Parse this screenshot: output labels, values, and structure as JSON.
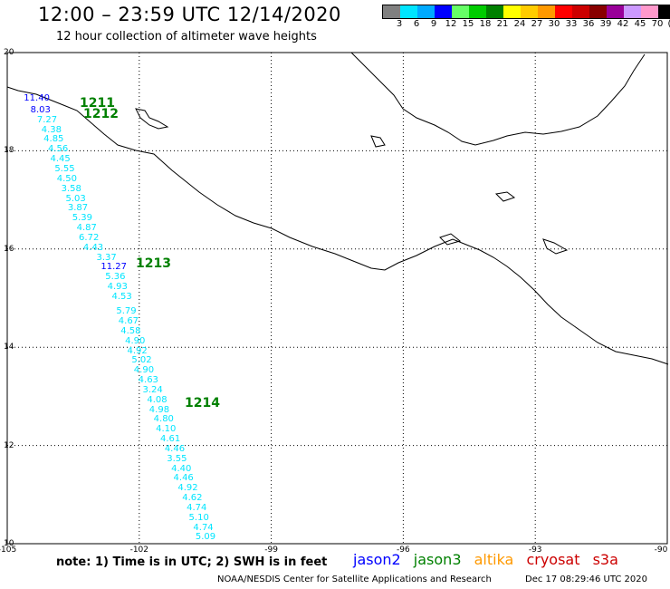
{
  "header": {
    "title": "12:00 – 23:59 UTC 12/14/2020",
    "subtitle": "12 hour collection of altimeter wave heights"
  },
  "colorbar": {
    "colors": [
      "#808080",
      "#00e5ff",
      "#00aaff",
      "#0000ff",
      "#66ff66",
      "#00cc00",
      "#008000",
      "#ffff00",
      "#ffcc00",
      "#ff9900",
      "#ff0000",
      "#cc0000",
      "#880000",
      "#990099",
      "#cc99ff",
      "#ff99cc",
      "#000000"
    ],
    "labels": [
      "3",
      "6",
      "9",
      "12",
      "15",
      "18",
      "21",
      "24",
      "27",
      "30",
      "33",
      "36",
      "39",
      "42",
      "45",
      "70",
      "(ft)"
    ]
  },
  "axes": {
    "y_labels": [
      "20",
      "18",
      "16",
      "14",
      "12",
      "10"
    ],
    "x_labels": [
      "-105",
      "-102",
      "-99",
      "-96",
      "-93",
      "-90"
    ]
  },
  "passes": [
    "1211",
    "1212",
    "1213",
    "1214"
  ],
  "chart_data": {
    "type": "scatter",
    "xlim": [
      -105,
      -90
    ],
    "ylim": [
      10,
      20
    ],
    "grid": true,
    "points": [
      {
        "label": "11.40",
        "lon": -104.5,
        "lat": 19.05,
        "color": "#0000ff"
      },
      {
        "label": "8.03",
        "lon": -104.35,
        "lat": 18.82,
        "color": "#0000ff"
      },
      {
        "label": "7.27",
        "lon": -104.2,
        "lat": 18.62,
        "color": "#00e5ff"
      },
      {
        "label": "4.38",
        "lon": -104.1,
        "lat": 18.42,
        "color": "#00e5ff"
      },
      {
        "label": "4.85",
        "lon": -104.05,
        "lat": 18.22,
        "color": "#00e5ff"
      },
      {
        "label": "4.56",
        "lon": -103.95,
        "lat": 18.02,
        "color": "#00e5ff"
      },
      {
        "label": "4.45",
        "lon": -103.9,
        "lat": 17.82,
        "color": "#00e5ff"
      },
      {
        "label": "5.55",
        "lon": -103.8,
        "lat": 17.62,
        "color": "#00e5ff"
      },
      {
        "label": "4.50",
        "lon": -103.75,
        "lat": 17.42,
        "color": "#00e5ff"
      },
      {
        "label": "3.58",
        "lon": -103.65,
        "lat": 17.22,
        "color": "#00e5ff"
      },
      {
        "label": "5.03",
        "lon": -103.55,
        "lat": 17.02,
        "color": "#00e5ff"
      },
      {
        "label": "3.87",
        "lon": -103.5,
        "lat": 16.82,
        "color": "#00e5ff"
      },
      {
        "label": "5.39",
        "lon": -103.4,
        "lat": 16.62,
        "color": "#00e5ff"
      },
      {
        "label": "4.87",
        "lon": -103.3,
        "lat": 16.42,
        "color": "#00e5ff"
      },
      {
        "label": "6.72",
        "lon": -103.25,
        "lat": 16.22,
        "color": "#00e5ff"
      },
      {
        "label": "4.43",
        "lon": -103.15,
        "lat": 16.02,
        "color": "#00e5ff"
      },
      {
        "label": "3.37",
        "lon": -102.85,
        "lat": 15.82,
        "color": "#00e5ff"
      },
      {
        "label": "11.27",
        "lon": -102.75,
        "lat": 15.62,
        "color": "#0000ff"
      },
      {
        "label": "5.36",
        "lon": -102.65,
        "lat": 15.42,
        "color": "#00e5ff"
      },
      {
        "label": "4.93",
        "lon": -102.6,
        "lat": 15.22,
        "color": "#00e5ff"
      },
      {
        "label": "4.53",
        "lon": -102.5,
        "lat": 15.02,
        "color": "#00e5ff"
      },
      {
        "label": "5.79",
        "lon": -102.4,
        "lat": 14.72,
        "color": "#00e5ff"
      },
      {
        "label": "4.67",
        "lon": -102.35,
        "lat": 14.52,
        "color": "#00e5ff"
      },
      {
        "label": "4.58",
        "lon": -102.3,
        "lat": 14.32,
        "color": "#00e5ff"
      },
      {
        "label": "4.90",
        "lon": -102.2,
        "lat": 14.12,
        "color": "#00e5ff"
      },
      {
        "label": "4.92",
        "lon": -102.15,
        "lat": 13.92,
        "color": "#00e5ff"
      },
      {
        "label": "5.02",
        "lon": -102.05,
        "lat": 13.72,
        "color": "#00e5ff"
      },
      {
        "label": "4.90",
        "lon": -102.0,
        "lat": 13.52,
        "color": "#00e5ff"
      },
      {
        "label": "4.63",
        "lon": -101.9,
        "lat": 13.32,
        "color": "#00e5ff"
      },
      {
        "label": "3.24",
        "lon": -101.8,
        "lat": 13.12,
        "color": "#00e5ff"
      },
      {
        "label": "4.08",
        "lon": -101.7,
        "lat": 12.92,
        "color": "#00e5ff"
      },
      {
        "label": "4.98",
        "lon": -101.65,
        "lat": 12.72,
        "color": "#00e5ff"
      },
      {
        "label": "4.80",
        "lon": -101.55,
        "lat": 12.52,
        "color": "#00e5ff"
      },
      {
        "label": "4.10",
        "lon": -101.5,
        "lat": 12.32,
        "color": "#00e5ff"
      },
      {
        "label": "4.61",
        "lon": -101.4,
        "lat": 12.12,
        "color": "#00e5ff"
      },
      {
        "label": "4.46",
        "lon": -101.3,
        "lat": 11.92,
        "color": "#00e5ff"
      },
      {
        "label": "3.55",
        "lon": -101.25,
        "lat": 11.72,
        "color": "#00e5ff"
      },
      {
        "label": "4.40",
        "lon": -101.15,
        "lat": 11.52,
        "color": "#00e5ff"
      },
      {
        "label": "4.46",
        "lon": -101.1,
        "lat": 11.32,
        "color": "#00e5ff"
      },
      {
        "label": "4.92",
        "lon": -101.0,
        "lat": 11.12,
        "color": "#00e5ff"
      },
      {
        "label": "4.62",
        "lon": -100.9,
        "lat": 10.92,
        "color": "#00e5ff"
      },
      {
        "label": "4.74",
        "lon": -100.8,
        "lat": 10.72,
        "color": "#00e5ff"
      },
      {
        "label": "5.10",
        "lon": -100.75,
        "lat": 10.52,
        "color": "#00e5ff"
      },
      {
        "label": "4.74",
        "lon": -100.65,
        "lat": 10.32,
        "color": "#00e5ff"
      },
      {
        "label": "5.09",
        "lon": -100.6,
        "lat": 10.12,
        "color": "#00e5ff"
      }
    ]
  },
  "legend": {
    "note": "note: 1) Time is in UTC; 2) SWH is in feet",
    "satellites": [
      {
        "name": "jason2",
        "color": "#0000ff"
      },
      {
        "name": "jason3",
        "color": "#008000"
      },
      {
        "name": "altika",
        "color": "#ff9900"
      },
      {
        "name": "cryosat",
        "color": "#cc0000"
      },
      {
        "name": "s3a",
        "color": "#cc0000"
      }
    ]
  },
  "footer": {
    "credit": "NOAA/NESDIS Center for Satellite Applications and Research",
    "timestamp": "Dec 17 08:29:46 UTC 2020"
  }
}
